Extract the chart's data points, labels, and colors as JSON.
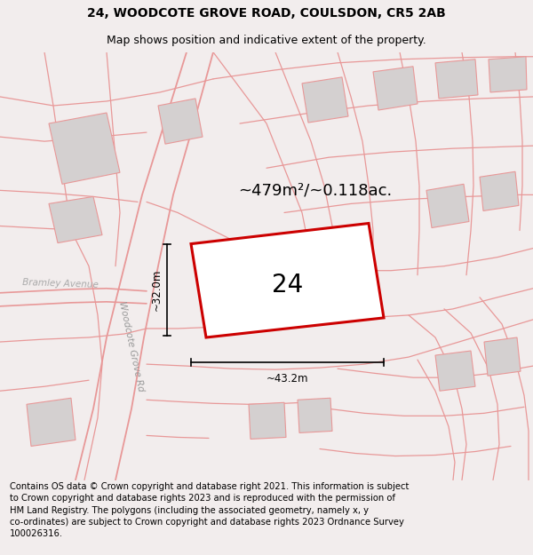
{
  "title_line1": "24, WOODCOTE GROVE ROAD, COULSDON, CR5 2AB",
  "title_line2": "Map shows position and indicative extent of the property.",
  "area_text": "~479m²/~0.118ac.",
  "plot_number": "24",
  "dim_width": "~43.2m",
  "dim_height": "~32.0m",
  "road_label_woodcote": "Woodcote Grove Rd",
  "road_label_bramley": "Bramley Avenue",
  "footer_text": "Contains OS data © Crown copyright and database right 2021. This information is subject\nto Crown copyright and database rights 2023 and is reproduced with the permission of\nHM Land Registry. The polygons (including the associated geometry, namely x, y\nco-ordinates) are subject to Crown copyright and database rights 2023 Ordnance Survey\n100026316.",
  "bg_color": "#f2eded",
  "map_bg": "#f9f6f6",
  "plot_color": "#cc0000",
  "building_fill": "#d4d0d0",
  "road_line_color": "#e89898",
  "title_fontsize": 10,
  "subtitle_fontsize": 9,
  "footer_fontsize": 7.2
}
